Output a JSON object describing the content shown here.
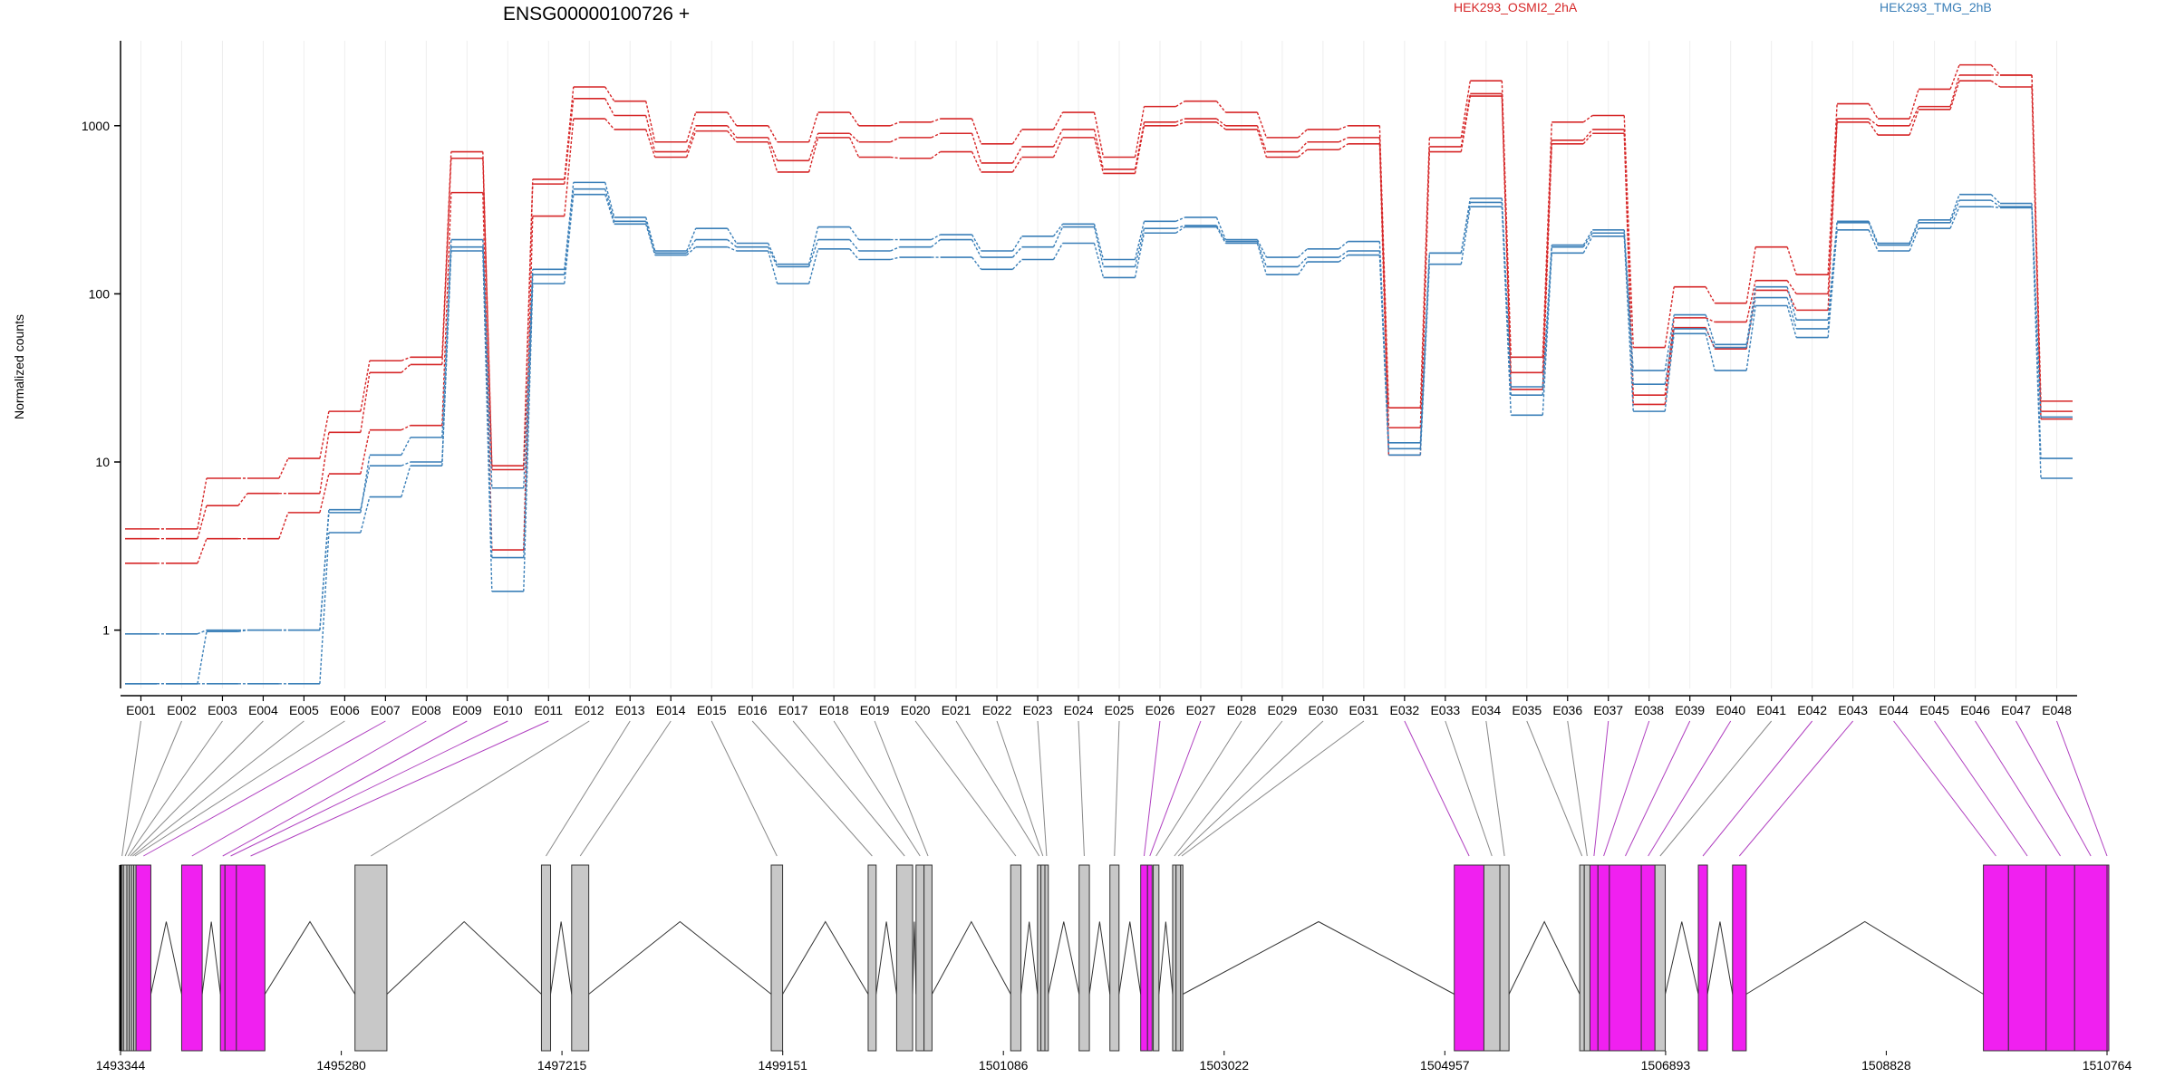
{
  "chart_data": {
    "type": "line",
    "title": "ENSG00000100726 +",
    "ylabel": "Normalized counts",
    "xlabel": "",
    "yscale": "log",
    "ylim": [
      0.45,
      3200
    ],
    "yticks": [
      1,
      10,
      100,
      1000
    ],
    "ytick_labels": [
      "1",
      "10",
      "100",
      "1000"
    ],
    "grid": "vertical",
    "legend": "top-right",
    "colors": {
      "HEK293_OSMI2_2hA": "#d62728",
      "HEK293_TMG_2hB": "#3a7fb8",
      "exon_differential": "#f020f0",
      "exon_other": "#c8c8c8"
    },
    "categories": [
      "E001",
      "E002",
      "E003",
      "E004",
      "E005",
      "E006",
      "E007",
      "E008",
      "E009",
      "E010",
      "E011",
      "E012",
      "E013",
      "E014",
      "E015",
      "E016",
      "E017",
      "E018",
      "E019",
      "E020",
      "E021",
      "E022",
      "E023",
      "E024",
      "E025",
      "E026",
      "E027",
      "E028",
      "E029",
      "E030",
      "E031",
      "E032",
      "E033",
      "E034",
      "E035",
      "E036",
      "E037",
      "E038",
      "E039",
      "E040",
      "E041",
      "E042",
      "E043",
      "E044",
      "E045",
      "E046",
      "E047",
      "E048"
    ],
    "legend_entries": [
      {
        "name": "HEK293_OSMI2_2hA",
        "color": "#d62728"
      },
      {
        "name": "HEK293_TMG_2hB",
        "color": "#3a7fb8"
      }
    ],
    "series": [
      {
        "group": "HEK293_OSMI2_2hA",
        "color": "#d62728",
        "values": [
          4,
          4,
          8,
          8,
          10.5,
          20,
          40,
          42,
          700,
          9.5,
          480,
          1700,
          1400,
          800,
          1200,
          1000,
          800,
          1200,
          1000,
          1050,
          1100,
          780,
          950,
          1200,
          650,
          1300,
          1400,
          1200,
          850,
          950,
          1000,
          21,
          850,
          1850,
          42,
          1050,
          1150,
          48,
          110,
          88,
          190,
          130,
          1350,
          1100,
          1650,
          2300,
          2000,
          23
        ]
      },
      {
        "group": "HEK293_OSMI2_2hA",
        "color": "#d62728",
        "values": [
          3.5,
          3.5,
          5.5,
          6.5,
          6.5,
          15,
          34,
          38,
          640,
          9,
          450,
          1450,
          1150,
          700,
          1000,
          850,
          620,
          900,
          800,
          850,
          900,
          600,
          750,
          950,
          550,
          1050,
          1100,
          1000,
          700,
          800,
          850,
          16,
          750,
          1550,
          34,
          820,
          950,
          25,
          72,
          68,
          120,
          100,
          1100,
          1000,
          1300,
          2000,
          2000,
          20
        ]
      },
      {
        "group": "HEK293_OSMI2_2hA",
        "color": "#d62728",
        "values": [
          2.5,
          2.5,
          3.5,
          3.5,
          5,
          8.5,
          15.5,
          16.5,
          400,
          3,
          290,
          1100,
          950,
          650,
          930,
          800,
          530,
          850,
          650,
          640,
          700,
          530,
          650,
          850,
          520,
          1000,
          1050,
          950,
          650,
          720,
          780,
          11,
          700,
          1500,
          27,
          780,
          900,
          22,
          63,
          47,
          105,
          80,
          1050,
          880,
          1250,
          1850,
          1700,
          18
        ]
      },
      {
        "group": "HEK293_TMG_2hB",
        "color": "#3a7fb8",
        "values": [
          0.95,
          0.95,
          1,
          1,
          1,
          5,
          11,
          14,
          210,
          7,
          140,
          460,
          285,
          180,
          245,
          200,
          150,
          250,
          210,
          210,
          225,
          180,
          220,
          260,
          160,
          270,
          285,
          210,
          165,
          185,
          205,
          13,
          175,
          370,
          28,
          195,
          240,
          35,
          75,
          50,
          110,
          70,
          270,
          200,
          275,
          390,
          345,
          10.5
        ]
      },
      {
        "group": "HEK293_TMG_2hB",
        "color": "#3a7fb8",
        "values": [
          0.48,
          0.48,
          0.98,
          1,
          1,
          5.2,
          9.5,
          10,
          190,
          2.7,
          130,
          420,
          270,
          175,
          210,
          190,
          145,
          210,
          180,
          190,
          210,
          165,
          190,
          250,
          145,
          245,
          255,
          205,
          145,
          165,
          180,
          12,
          175,
          350,
          25,
          190,
          230,
          29,
          62,
          48,
          95,
          62,
          265,
          195,
          265,
          360,
          330,
          18.5
        ]
      },
      {
        "group": "HEK293_TMG_2hB",
        "color": "#3a7fb8",
        "values": [
          0.48,
          0.48,
          0.48,
          0.48,
          0.48,
          3.8,
          6.2,
          9.5,
          180,
          1.7,
          115,
          390,
          260,
          170,
          190,
          180,
          115,
          185,
          160,
          165,
          165,
          140,
          160,
          200,
          125,
          230,
          250,
          200,
          130,
          155,
          170,
          11,
          150,
          330,
          19,
          175,
          220,
          20,
          58,
          35,
          85,
          55,
          240,
          180,
          245,
          330,
          325,
          8
        ]
      }
    ],
    "gene_track": {
      "coordinate_ticks": [
        1493344,
        1495280,
        1497215,
        1499151,
        1501086,
        1503022,
        1504957,
        1506893,
        1508828,
        1510764
      ],
      "coordinate_tick_labels": [
        "1493344",
        "1495280",
        "1497215",
        "1499151",
        "1501086",
        "1503022",
        "1504957",
        "1506893",
        "1508828",
        "1510764"
      ],
      "exons": [
        {
          "id": "E001",
          "start": 1493344,
          "end": 1493370,
          "differential": false
        },
        {
          "id": "E002",
          "start": 1493370,
          "end": 1493400,
          "differential": false
        },
        {
          "id": "E003",
          "start": 1493400,
          "end": 1493420,
          "differential": false
        },
        {
          "id": "E004",
          "start": 1493420,
          "end": 1493440,
          "differential": false
        },
        {
          "id": "E005",
          "start": 1493440,
          "end": 1493460,
          "differential": false
        },
        {
          "id": "E006",
          "start": 1493460,
          "end": 1493480,
          "differential": false
        },
        {
          "id": "E007",
          "start": 1493480,
          "end": 1493610,
          "differential": true
        },
        {
          "id": "E008",
          "start": 1493880,
          "end": 1494060,
          "differential": true
        },
        {
          "id": "E009",
          "start": 1494220,
          "end": 1494260,
          "differential": true
        },
        {
          "id": "E010",
          "start": 1494260,
          "end": 1494360,
          "differential": true
        },
        {
          "id": "E011",
          "start": 1494360,
          "end": 1494610,
          "differential": true
        },
        {
          "id": "E012",
          "start": 1495400,
          "end": 1495680,
          "differential": false
        },
        {
          "id": "E013",
          "start": 1497035,
          "end": 1497115,
          "differential": false
        },
        {
          "id": "E014",
          "start": 1497300,
          "end": 1497450,
          "differential": false
        },
        {
          "id": "E015",
          "start": 1499050,
          "end": 1499150,
          "differential": false
        },
        {
          "id": "E016",
          "start": 1499900,
          "end": 1499970,
          "differential": false
        },
        {
          "id": "E017",
          "start": 1500150,
          "end": 1500290,
          "differential": false
        },
        {
          "id": "E018",
          "start": 1500320,
          "end": 1500390,
          "differential": false
        },
        {
          "id": "E019",
          "start": 1500390,
          "end": 1500460,
          "differential": false
        },
        {
          "id": "E020",
          "start": 1501150,
          "end": 1501240,
          "differential": false
        },
        {
          "id": "E021",
          "start": 1501385,
          "end": 1501415,
          "differential": false
        },
        {
          "id": "E022",
          "start": 1501415,
          "end": 1501450,
          "differential": false
        },
        {
          "id": "E023",
          "start": 1501450,
          "end": 1501480,
          "differential": false
        },
        {
          "id": "E024",
          "start": 1501750,
          "end": 1501840,
          "differential": false
        },
        {
          "id": "E025",
          "start": 1502020,
          "end": 1502100,
          "differential": false
        },
        {
          "id": "E026",
          "start": 1502290,
          "end": 1502350,
          "differential": true
        },
        {
          "id": "E027",
          "start": 1502350,
          "end": 1502390,
          "differential": true
        },
        {
          "id": "E028",
          "start": 1502400,
          "end": 1502450,
          "differential": false
        },
        {
          "id": "E029",
          "start": 1502570,
          "end": 1502600,
          "differential": false
        },
        {
          "id": "E030",
          "start": 1502600,
          "end": 1502640,
          "differential": false
        },
        {
          "id": "E031",
          "start": 1502640,
          "end": 1502660,
          "differential": false
        },
        {
          "id": "E032",
          "start": 1505040,
          "end": 1505300,
          "differential": true
        },
        {
          "id": "E033",
          "start": 1505300,
          "end": 1505440,
          "differential": false
        },
        {
          "id": "E034",
          "start": 1505440,
          "end": 1505520,
          "differential": false
        },
        {
          "id": "E035",
          "start": 1506140,
          "end": 1506180,
          "differential": false
        },
        {
          "id": "E036",
          "start": 1506180,
          "end": 1506230,
          "differential": false
        },
        {
          "id": "E037",
          "start": 1506230,
          "end": 1506300,
          "differential": true
        },
        {
          "id": "E038",
          "start": 1506300,
          "end": 1506400,
          "differential": true
        },
        {
          "id": "E039",
          "start": 1506400,
          "end": 1506680,
          "differential": true
        },
        {
          "id": "E040",
          "start": 1506680,
          "end": 1506800,
          "differential": true
        },
        {
          "id": "E041",
          "start": 1506800,
          "end": 1506890,
          "differential": false
        },
        {
          "id": "E042",
          "start": 1507180,
          "end": 1507260,
          "differential": true
        },
        {
          "id": "E043",
          "start": 1507480,
          "end": 1507600,
          "differential": true
        },
        {
          "id": "E044",
          "start": 1509680,
          "end": 1509900,
          "differential": true
        },
        {
          "id": "E045",
          "start": 1509900,
          "end": 1510230,
          "differential": true
        },
        {
          "id": "E046",
          "start": 1510230,
          "end": 1510480,
          "differential": true
        },
        {
          "id": "E047",
          "start": 1510480,
          "end": 1510764,
          "differential": true
        },
        {
          "id": "E048",
          "start": 1510764,
          "end": 1510764,
          "differential": true
        }
      ]
    }
  }
}
